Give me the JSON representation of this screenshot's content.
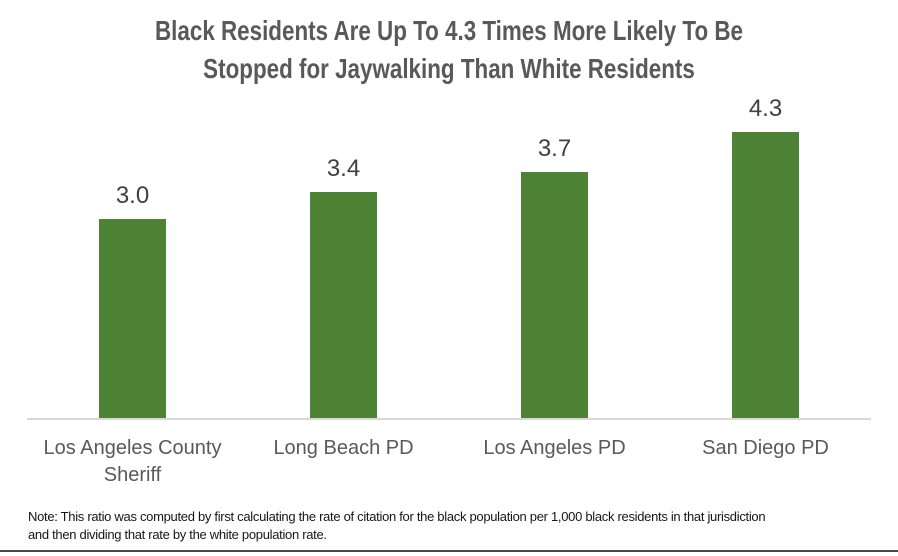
{
  "chart_data": {
    "type": "bar",
    "title": "Black Residents Are Up To 4.3 Times More Likely To Be Stopped for Jaywalking Than White Residents",
    "title_lines": [
      "Black Residents Are Up To 4.3 Times More Likely To Be",
      "Stopped for Jaywalking Than White Residents"
    ],
    "categories": [
      "Los Angeles County Sheriff",
      "Long Beach PD",
      "Los Angeles PD",
      "San Diego PD"
    ],
    "values": [
      3.0,
      3.4,
      3.7,
      4.3
    ],
    "data_labels": [
      "3.0",
      "3.4",
      "3.7",
      "4.3"
    ],
    "xlabel": "",
    "ylabel": "",
    "ylim": [
      0,
      4.5
    ],
    "grid": false,
    "legend": false,
    "bar_color": "#4e8234",
    "title_color": "#595959",
    "value_label_color": "#404040",
    "category_label_color": "#595959",
    "axis_line_color": "#d9d9d9",
    "bottom_rule_color": "#474747"
  },
  "note": {
    "lines": [
      "Note: This ratio was computed by first calculating the rate of citation for the black population per 1,000 black residents in that jurisdiction",
      "and then dividing that rate by the white population rate."
    ]
  }
}
